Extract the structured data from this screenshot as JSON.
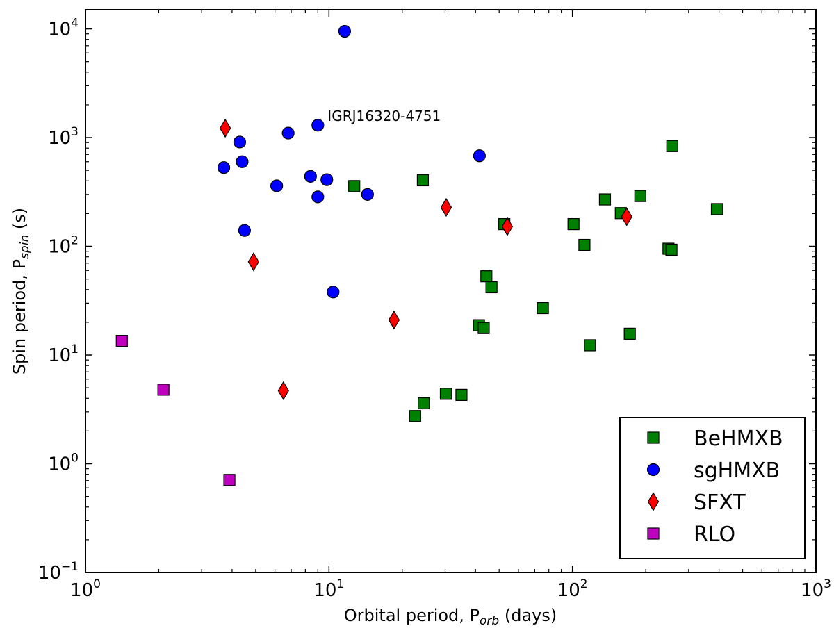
{
  "chart_data": {
    "type": "scatter",
    "title": "",
    "xlabel": {
      "prefix": "Orbital period, P",
      "sub": "orb",
      "suffix": " (days)"
    },
    "ylabel": {
      "prefix": "Spin period, P",
      "sub": "spin",
      "suffix": " (s)"
    },
    "xscale": "log",
    "yscale": "log",
    "xlim": [
      1,
      1000
    ],
    "ylim": [
      0.1,
      15000
    ],
    "x_ticks": [
      {
        "value": 1,
        "base": "10",
        "exp": "0"
      },
      {
        "value": 10,
        "base": "10",
        "exp": "1"
      },
      {
        "value": 100,
        "base": "10",
        "exp": "2"
      },
      {
        "value": 1000,
        "base": "10",
        "exp": "3"
      }
    ],
    "y_ticks": [
      {
        "value": 0.1,
        "base": "10",
        "exp": "−1"
      },
      {
        "value": 1,
        "base": "10",
        "exp": "0"
      },
      {
        "value": 10,
        "base": "10",
        "exp": "1"
      },
      {
        "value": 100,
        "base": "10",
        "exp": "2"
      },
      {
        "value": 1000,
        "base": "10",
        "exp": "3"
      },
      {
        "value": 10000,
        "base": "10",
        "exp": "4"
      }
    ],
    "legend_position": "lower-right",
    "series": [
      {
        "name": "BeHMXB",
        "marker": "square",
        "color": "#008000",
        "points": [
          [
            12.7,
            358
          ],
          [
            24.3,
            405
          ],
          [
            257,
            835
          ],
          [
            392,
            220
          ],
          [
            190,
            290
          ],
          [
            136,
            270
          ],
          [
            158,
            202
          ],
          [
            101,
            160
          ],
          [
            52.5,
            160
          ],
          [
            112,
            103
          ],
          [
            248,
            95
          ],
          [
            255,
            93
          ],
          [
            44.3,
            53
          ],
          [
            46.5,
            42
          ],
          [
            75.6,
            27
          ],
          [
            41.3,
            18.8
          ],
          [
            43.2,
            17.7
          ],
          [
            172,
            15.7
          ],
          [
            118,
            12.3
          ],
          [
            30.2,
            4.4
          ],
          [
            35,
            4.3
          ],
          [
            24.5,
            3.6
          ],
          [
            22.6,
            2.75
          ]
        ]
      },
      {
        "name": "sgHMXB",
        "marker": "circle",
        "color": "#0000ff",
        "points": [
          [
            11.6,
            9500
          ],
          [
            9.0,
            1300
          ],
          [
            6.8,
            1100
          ],
          [
            4.3,
            910
          ],
          [
            41.5,
            680
          ],
          [
            4.4,
            600
          ],
          [
            3.7,
            530
          ],
          [
            8.4,
            440
          ],
          [
            9.8,
            410
          ],
          [
            6.1,
            360
          ],
          [
            14.4,
            300
          ],
          [
            9.0,
            285
          ],
          [
            4.5,
            140
          ],
          [
            10.4,
            38
          ]
        ]
      },
      {
        "name": "SFXT",
        "marker": "diamond",
        "color": "#ff0000",
        "points": [
          [
            3.75,
            1220
          ],
          [
            30.3,
            228
          ],
          [
            167,
            187
          ],
          [
            54,
            152
          ],
          [
            4.9,
            72
          ],
          [
            18.5,
            21
          ],
          [
            6.5,
            4.7
          ]
        ]
      },
      {
        "name": "RLO",
        "marker": "square",
        "color": "#bf00bf",
        "points": [
          [
            1.41,
            13.5
          ],
          [
            2.09,
            4.8
          ],
          [
            3.9,
            0.71
          ]
        ]
      }
    ],
    "annotations": [
      {
        "text": "IGRJ16320-4751",
        "x": 9.0,
        "y": 1300
      }
    ]
  }
}
